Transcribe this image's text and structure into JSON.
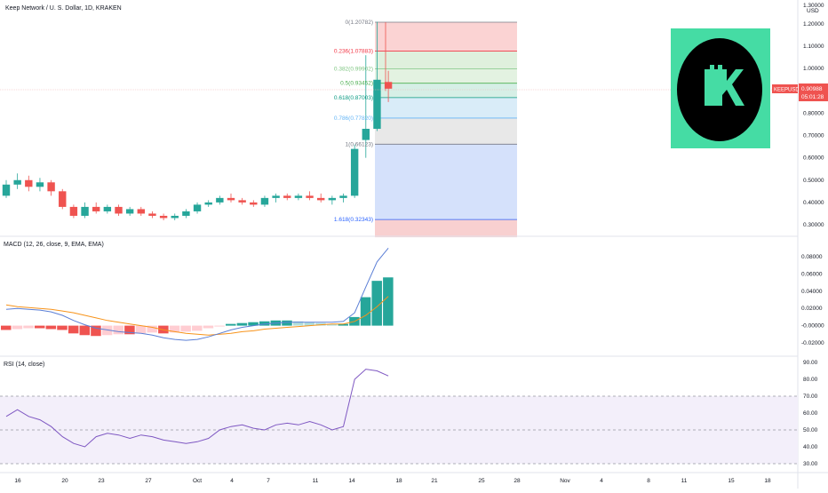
{
  "header": {
    "title": "Keep Network / U. S. Dollar, 1D, KRAKEN"
  },
  "price_axis": {
    "currency": "USD",
    "top_label": "1.30000",
    "ticks": [
      "1.20000",
      "1.10000",
      "1.00000",
      "0.90000",
      "0.80000",
      "0.70000",
      "0.60000",
      "0.50000",
      "0.40000",
      "0.30000"
    ],
    "symbol_tag": "KEEPUSD",
    "last_price": "0.90988",
    "countdown": "05:01:28"
  },
  "fib_levels": [
    {
      "label": "0(1.20782)",
      "value": 1.20782,
      "color": "#787b86"
    },
    {
      "label": "0.236(1.07883)",
      "value": 1.07883,
      "color": "#f23645"
    },
    {
      "label": "0.382(0.99902)",
      "value": 0.99902,
      "color": "#81c784"
    },
    {
      "label": "0.5(0.93452)",
      "value": 0.93452,
      "color": "#4caf50"
    },
    {
      "label": "0.618(0.87003)",
      "value": 0.87003,
      "color": "#089981"
    },
    {
      "label": "0.786(0.77820)",
      "value": 0.7782,
      "color": "#64b5f6"
    },
    {
      "label": "1(0.66123)",
      "value": 0.66123,
      "color": "#787b86"
    },
    {
      "label": "1.618(0.32343)",
      "value": 0.32343,
      "color": "#2962ff"
    }
  ],
  "macd": {
    "label": "MACD (12, 26, close, 9, EMA, EMA)",
    "ticks": [
      "0.08000",
      "0.06000",
      "0.04000",
      "0.02000",
      "-0.00000",
      "-0.02000"
    ]
  },
  "rsi": {
    "label": "RSI (14, close)",
    "ticks": [
      "90.00",
      "80.00",
      "70.00",
      "60.00",
      "50.00",
      "40.00",
      "30.00"
    ]
  },
  "time_axis": [
    "16",
    "20",
    "23",
    "27",
    "Oct",
    "4",
    "7",
    "11",
    "14",
    "18",
    "21",
    "25",
    "28",
    "Nov",
    "4",
    "8",
    "11",
    "15",
    "18"
  ],
  "logo": {
    "letter": "K",
    "background": "#45dca4",
    "circle": "#000000",
    "glyph": "#45dca4"
  },
  "colors": {
    "up": "#26a69a",
    "down": "#ef5350",
    "macd_line": "#5b7fd6",
    "signal_line": "#f7931a",
    "rsi_line": "#7e57c2"
  },
  "chart_data": {
    "type": "candlestick",
    "title": "Keep Network / U. S. Dollar, 1D, KRAKEN",
    "y_range": [
      0.26,
      1.31
    ],
    "candles": [
      [
        0.43,
        0.5,
        0.42,
        0.48
      ],
      [
        0.48,
        0.53,
        0.46,
        0.5
      ],
      [
        0.5,
        0.52,
        0.45,
        0.47
      ],
      [
        0.47,
        0.51,
        0.45,
        0.49
      ],
      [
        0.49,
        0.5,
        0.43,
        0.45
      ],
      [
        0.45,
        0.46,
        0.37,
        0.38
      ],
      [
        0.38,
        0.39,
        0.33,
        0.34
      ],
      [
        0.34,
        0.4,
        0.33,
        0.38
      ],
      [
        0.38,
        0.4,
        0.35,
        0.36
      ],
      [
        0.36,
        0.39,
        0.35,
        0.38
      ],
      [
        0.38,
        0.39,
        0.34,
        0.35
      ],
      [
        0.35,
        0.38,
        0.34,
        0.37
      ],
      [
        0.37,
        0.38,
        0.34,
        0.35
      ],
      [
        0.35,
        0.36,
        0.33,
        0.34
      ],
      [
        0.34,
        0.35,
        0.32,
        0.33
      ],
      [
        0.33,
        0.35,
        0.32,
        0.34
      ],
      [
        0.34,
        0.37,
        0.33,
        0.36
      ],
      [
        0.36,
        0.4,
        0.35,
        0.39
      ],
      [
        0.39,
        0.41,
        0.38,
        0.4
      ],
      [
        0.4,
        0.43,
        0.39,
        0.42
      ],
      [
        0.42,
        0.44,
        0.4,
        0.41
      ],
      [
        0.41,
        0.42,
        0.39,
        0.4
      ],
      [
        0.4,
        0.41,
        0.38,
        0.39
      ],
      [
        0.39,
        0.43,
        0.38,
        0.42
      ],
      [
        0.42,
        0.44,
        0.4,
        0.43
      ],
      [
        0.43,
        0.44,
        0.41,
        0.42
      ],
      [
        0.42,
        0.44,
        0.41,
        0.43
      ],
      [
        0.43,
        0.45,
        0.41,
        0.42
      ],
      [
        0.42,
        0.44,
        0.4,
        0.41
      ],
      [
        0.41,
        0.43,
        0.39,
        0.42
      ],
      [
        0.42,
        0.44,
        0.4,
        0.43
      ],
      [
        0.43,
        0.66,
        0.42,
        0.64
      ],
      [
        0.68,
        1.06,
        0.6,
        0.73
      ],
      [
        0.73,
        1.21,
        0.72,
        0.95
      ],
      [
        0.94,
        0.99,
        0.85,
        0.91
      ]
    ],
    "macd_line": [
      0.019,
      0.02,
      0.019,
      0.018,
      0.016,
      0.012,
      0.006,
      0.001,
      -0.003,
      -0.005,
      -0.007,
      -0.008,
      -0.009,
      -0.011,
      -0.014,
      -0.016,
      -0.017,
      -0.016,
      -0.013,
      -0.009,
      -0.005,
      -0.002,
      0.0,
      0.002,
      0.003,
      0.004,
      0.004,
      0.004,
      0.004,
      0.004,
      0.005,
      0.015,
      0.045,
      0.074,
      0.09
    ],
    "signal_line": [
      0.024,
      0.022,
      0.021,
      0.02,
      0.019,
      0.017,
      0.015,
      0.012,
      0.009,
      0.006,
      0.004,
      0.002,
      0.0,
      -0.002,
      -0.005,
      -0.007,
      -0.009,
      -0.01,
      -0.011,
      -0.01,
      -0.009,
      -0.007,
      -0.006,
      -0.004,
      -0.003,
      -0.002,
      -0.001,
      0.0,
      0.001,
      0.002,
      0.002,
      0.005,
      0.012,
      0.022,
      0.034
    ],
    "macd_hist": [
      -0.005,
      -0.004,
      -0.003,
      -0.003,
      -0.004,
      -0.005,
      -0.009,
      -0.011,
      -0.012,
      -0.011,
      -0.01,
      -0.01,
      -0.009,
      -0.008,
      -0.009,
      -0.008,
      -0.007,
      -0.006,
      -0.003,
      -0.001,
      0.002,
      0.003,
      0.004,
      0.005,
      0.006,
      0.006,
      0.005,
      0.004,
      0.003,
      0.002,
      0.002,
      0.01,
      0.033,
      0.052,
      0.056
    ],
    "rsi": [
      58,
      62,
      58,
      56,
      52,
      46,
      42,
      40,
      46,
      48,
      47,
      45,
      47,
      46,
      44,
      43,
      42,
      43,
      45,
      50,
      52,
      53,
      51,
      50,
      53,
      54,
      53,
      55,
      53,
      50,
      52,
      80,
      86,
      85,
      82
    ]
  }
}
